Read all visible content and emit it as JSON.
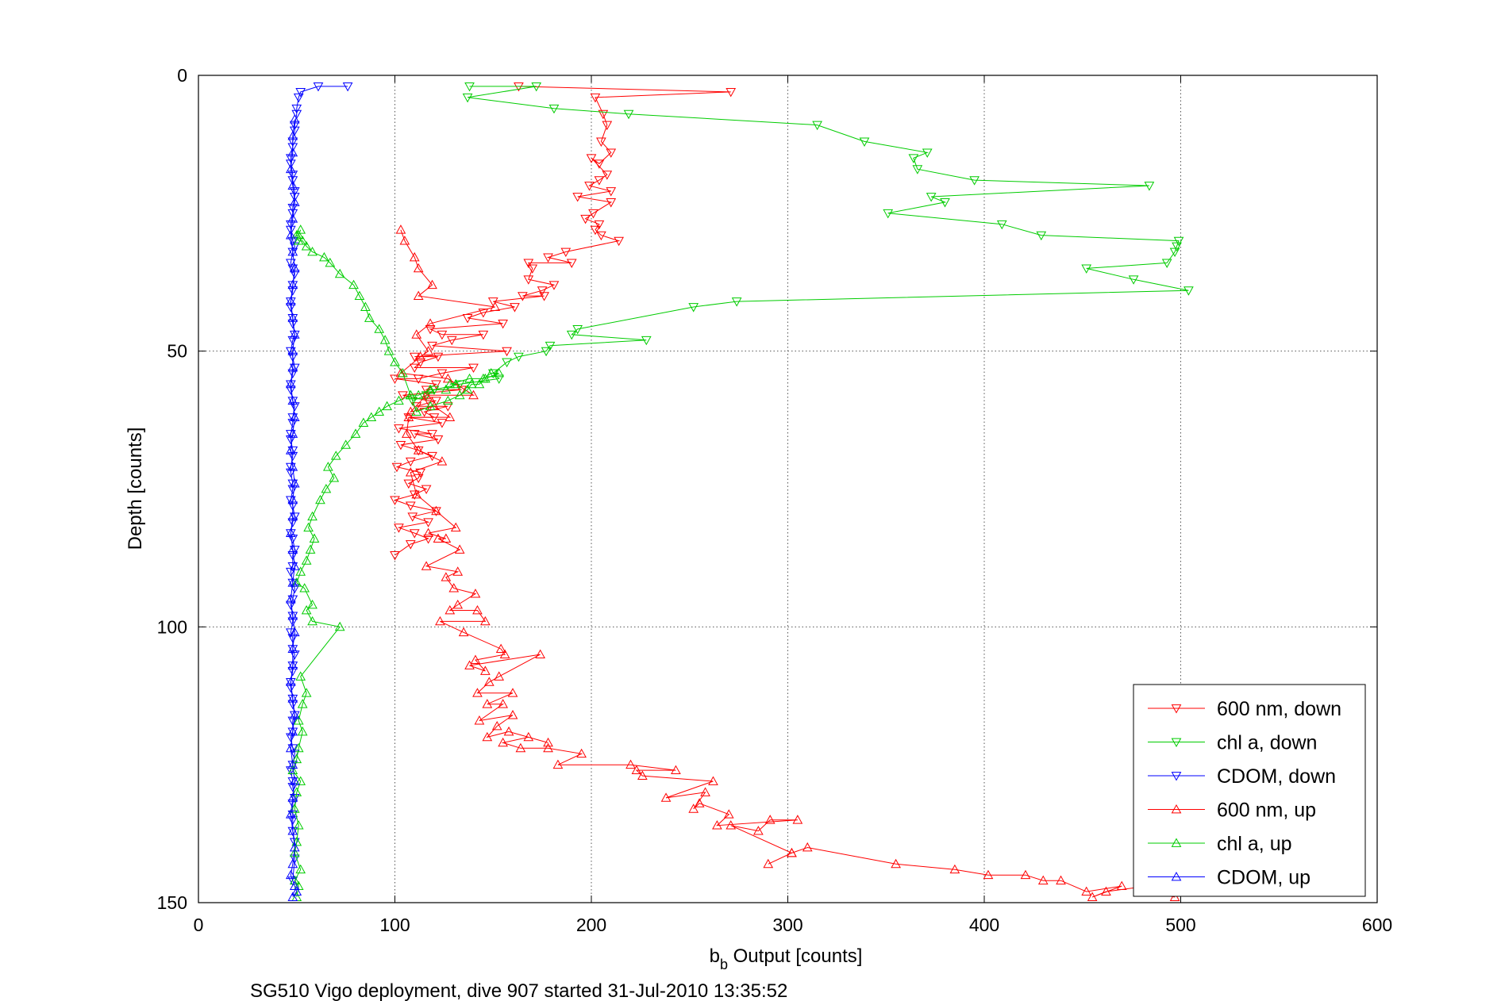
{
  "chart_data": {
    "type": "line",
    "xlabel_main": "b",
    "xlabel_sub": "b",
    "xlabel_rest": " Output [counts]",
    "ylabel": "Depth [counts]",
    "caption": "SG510 Vigo deployment, dive 907 started 31-Jul-2010 13:35:52",
    "xlim": [
      0,
      600
    ],
    "ylim": [
      0,
      150
    ],
    "y_reversed": true,
    "grid": true,
    "legend_position": "bottom-right",
    "x_ticks": [
      "0",
      "100",
      "200",
      "300",
      "400",
      "500",
      "600"
    ],
    "y_ticks": [
      "0",
      "50",
      "100",
      "150"
    ],
    "series": [
      {
        "name": "600 nm, down",
        "color": "#ff0000",
        "marker": "down",
        "x": [
          163,
          271,
          202,
          206,
          208,
          205,
          210,
          204,
          200,
          208,
          204,
          199,
          210,
          193,
          210,
          201,
          197,
          204,
          202,
          205,
          214,
          187,
          178,
          190,
          168,
          170,
          168,
          181,
          175,
          165,
          176,
          150,
          161,
          145,
          137,
          155,
          118,
          124,
          145,
          129,
          119,
          157,
          110,
          122,
          113,
          110,
          140,
          124,
          112,
          100,
          121,
          116,
          134,
          104,
          117,
          121,
          111,
          127,
          115,
          120,
          107,
          124,
          102,
          119,
          110,
          122,
          103,
          112,
          119,
          108,
          101,
          113,
          112,
          107,
          116,
          110,
          100,
          108,
          121,
          109,
          117,
          102,
          110,
          117,
          108,
          100
        ],
        "y": [
          2,
          3,
          4,
          7,
          9,
          12,
          14,
          16,
          15,
          18,
          19,
          20,
          21,
          22,
          23,
          25,
          26,
          27,
          28,
          29,
          30,
          32,
          33,
          34,
          34,
          35,
          37,
          38,
          39,
          40,
          40,
          41,
          42,
          43,
          44,
          45,
          46,
          47,
          47,
          48,
          49,
          50,
          51,
          51,
          52,
          53,
          53,
          54,
          55,
          55,
          56,
          57,
          57,
          58,
          59,
          59,
          60,
          60,
          61,
          62,
          62,
          63,
          64,
          65,
          65,
          66,
          67,
          68,
          69,
          70,
          71,
          72,
          73,
          74,
          75,
          76,
          77,
          78,
          79,
          80,
          81,
          82,
          83,
          84,
          85,
          87
        ]
      },
      {
        "name": "chl a, down",
        "color": "#00cc00",
        "marker": "down",
        "x": [
          138,
          172,
          137,
          181,
          219,
          315,
          339,
          371,
          364,
          366,
          395,
          484,
          373,
          380,
          351,
          409,
          429,
          499,
          498,
          497,
          493,
          452,
          476,
          504,
          274,
          252,
          193,
          190,
          228,
          179,
          177,
          163,
          157,
          150,
          153,
          133,
          120,
          116,
          109
        ],
        "y": [
          2,
          2,
          4,
          6,
          7,
          9,
          12,
          14,
          15,
          17,
          19,
          20,
          22,
          23,
          25,
          27,
          29,
          30,
          31,
          32,
          34,
          35,
          37,
          39,
          41,
          42,
          46,
          47,
          48,
          49,
          50,
          51,
          52,
          54,
          55,
          56,
          57,
          58,
          59
        ]
      },
      {
        "name": "CDOM, down",
        "color": "#0000ff",
        "marker": "down",
        "x": [
          76,
          61,
          52,
          51,
          50,
          50,
          49,
          49,
          48,
          48,
          47,
          47,
          48,
          48,
          49,
          49,
          48,
          48,
          47,
          47,
          48,
          49,
          48,
          47,
          48,
          49,
          48,
          48,
          47,
          47,
          48,
          48,
          49,
          48,
          47,
          48,
          49,
          48,
          47,
          47,
          48,
          49,
          48,
          48,
          47,
          47,
          48,
          48,
          47,
          47,
          48,
          48,
          47,
          48,
          49,
          48,
          47,
          48,
          49,
          48,
          48,
          47,
          48,
          49,
          48,
          47,
          48,
          48,
          47,
          48,
          48,
          49,
          48,
          48,
          47,
          47,
          48,
          48,
          49,
          48,
          48,
          47,
          48,
          49,
          48,
          47,
          48,
          48,
          49,
          48,
          48,
          48,
          48,
          49,
          49,
          48
        ],
        "y": [
          2,
          2,
          3,
          4,
          6,
          7,
          9,
          10,
          12,
          13,
          15,
          16,
          18,
          19,
          21,
          22,
          24,
          25,
          27,
          28,
          30,
          31,
          32,
          34,
          35,
          36,
          38,
          39,
          41,
          42,
          44,
          45,
          47,
          48,
          50,
          51,
          53,
          54,
          56,
          57,
          59,
          60,
          62,
          63,
          65,
          66,
          68,
          69,
          71,
          72,
          74,
          75,
          77,
          78,
          80,
          81,
          83,
          84,
          86,
          87,
          89,
          90,
          92,
          93,
          95,
          96,
          98,
          99,
          101,
          102,
          104,
          105,
          107,
          108,
          110,
          111,
          113,
          114,
          116,
          117,
          119,
          120,
          122,
          123,
          125,
          126,
          128,
          129,
          131,
          132,
          134,
          135,
          137,
          139,
          142,
          146
        ]
      },
      {
        "name": "600 nm, up",
        "color": "#ff0000",
        "marker": "up",
        "x": [
          497,
          483,
          498,
          483,
          462,
          455,
          470,
          452,
          439,
          430,
          421,
          402,
          385,
          355,
          310,
          302,
          290,
          302,
          271,
          285,
          291,
          305,
          264,
          270,
          255,
          252,
          258,
          238,
          262,
          226,
          223,
          243,
          220,
          183,
          195,
          178,
          164,
          155,
          168,
          178,
          158,
          147,
          152,
          160,
          143,
          155,
          147,
          160,
          142,
          148,
          153,
          174,
          138,
          146,
          141,
          156,
          154,
          135,
          123,
          146,
          142,
          128,
          132,
          141,
          130,
          126,
          132,
          116,
          133,
          122,
          126,
          117,
          131,
          121,
          111,
          108,
          124,
          112,
          106,
          107,
          128,
          120,
          108,
          116,
          140,
          127,
          103,
          113,
          117,
          111,
          118,
          151,
          112,
          119,
          112,
          110,
          105,
          103
        ],
        "y": [
          149,
          148,
          148,
          147,
          148,
          149,
          147,
          148,
          146,
          146,
          145,
          145,
          144,
          143,
          140,
          141,
          143,
          141,
          136,
          137,
          135,
          135,
          136,
          134,
          132,
          133,
          130,
          131,
          128,
          127,
          126,
          126,
          125,
          125,
          123,
          122,
          122,
          121,
          120,
          121,
          119,
          120,
          118,
          116,
          117,
          114,
          114,
          112,
          112,
          110,
          109,
          105,
          107,
          108,
          106,
          105,
          104,
          101,
          99,
          99,
          97,
          97,
          96,
          94,
          93,
          91,
          90,
          89,
          86,
          84,
          84,
          83,
          82,
          79,
          76,
          72,
          70,
          68,
          65,
          62,
          62,
          60,
          61,
          58,
          58,
          55,
          54,
          51,
          50,
          47,
          45,
          42,
          40,
          38,
          35,
          33,
          30,
          28
        ]
      },
      {
        "name": "chl a, up",
        "color": "#00cc00",
        "marker": "up",
        "x": [
          50,
          51,
          49,
          52,
          49,
          50,
          51,
          49,
          50,
          52,
          48,
          50,
          51,
          53,
          51,
          53,
          55,
          52,
          72,
          58,
          55,
          58,
          54,
          50,
          52,
          55,
          57,
          59,
          56,
          58,
          62,
          65,
          69,
          66,
          70,
          75,
          80,
          84,
          88,
          92,
          96,
          102,
          108,
          112,
          118,
          126,
          131,
          128,
          138,
          145,
          149,
          153,
          146,
          143,
          139,
          137,
          133,
          127,
          118,
          111,
          108,
          104,
          100,
          97,
          95,
          92,
          87,
          85,
          82,
          79,
          72,
          67,
          64,
          58,
          55,
          53,
          51,
          50,
          51,
          52
        ],
        "y": [
          149,
          147,
          146,
          144,
          141,
          139,
          136,
          133,
          130,
          128,
          126,
          124,
          122,
          119,
          117,
          114,
          112,
          109,
          100,
          99,
          97,
          96,
          93,
          92,
          90,
          88,
          86,
          84,
          82,
          80,
          77,
          75,
          73,
          71,
          69,
          67,
          65,
          63,
          62,
          61,
          60,
          59,
          58,
          58,
          57,
          57,
          56,
          56,
          55,
          55,
          54,
          54,
          55,
          56,
          56,
          57,
          58,
          59,
          60,
          61,
          58,
          54,
          52,
          50,
          48,
          46,
          44,
          42,
          40,
          38,
          36,
          34,
          33,
          32,
          31,
          30,
          30,
          29,
          29,
          28
        ]
      },
      {
        "name": "CDOM, up",
        "color": "#0000ff",
        "marker": "up",
        "x": [
          48,
          50,
          49,
          47,
          48,
          49,
          48,
          47,
          48,
          49,
          48,
          47,
          48,
          49,
          48,
          47,
          48,
          48,
          49,
          48,
          47,
          48,
          49,
          48,
          47,
          48,
          48,
          49,
          48,
          47,
          48,
          49,
          48,
          47,
          48,
          48,
          49,
          48,
          47,
          48,
          49,
          48,
          47,
          48,
          49,
          48,
          47,
          48,
          48,
          49
        ],
        "y": [
          149,
          148,
          147,
          145,
          143,
          140,
          137,
          134,
          131,
          128,
          125,
          122,
          119,
          116,
          113,
          110,
          107,
          104,
          101,
          98,
          95,
          92,
          89,
          86,
          83,
          80,
          77,
          74,
          71,
          68,
          65,
          62,
          59,
          56,
          53,
          50,
          47,
          44,
          41,
          38,
          35,
          32,
          29,
          26,
          23,
          20,
          17,
          14,
          11,
          8
        ]
      }
    ]
  }
}
